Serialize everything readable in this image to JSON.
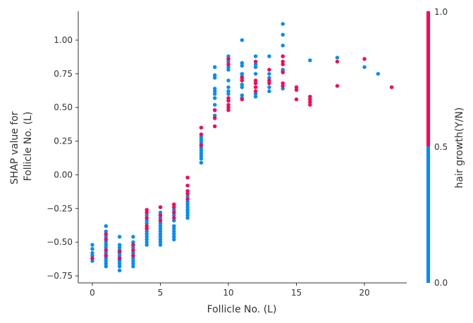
{
  "chart_data": {
    "type": "scatter",
    "title": "",
    "xlabel": "Follicle No. (L)",
    "ylabel_lines": [
      "SHAP value for",
      "Follicle No. (L)"
    ],
    "xlim": [
      -1,
      23
    ],
    "ylim": [
      -0.8,
      1.21
    ],
    "x_ticks": [
      0,
      5,
      10,
      15,
      20
    ],
    "x_tick_labels": [
      "0",
      "5",
      "10",
      "15",
      "20"
    ],
    "y_ticks": [
      -0.75,
      -0.5,
      -0.25,
      0.0,
      0.25,
      0.5,
      0.75,
      1.0
    ],
    "y_tick_labels": [
      "−0.75",
      "−0.50",
      "−0.25",
      "0.00",
      "0.25",
      "0.50",
      "0.75",
      "1.00"
    ],
    "grid": false,
    "colorbar": {
      "label": "hair growth(Y/N)",
      "tick_labels": [
        "0.0",
        "0.5",
        "1.0"
      ],
      "low_color": "#008bfb",
      "high_color": "#ff0052"
    },
    "series": [
      {
        "color": "#008bfb",
        "points": [
          [
            0,
            -0.52
          ],
          [
            0,
            -0.55
          ],
          [
            0,
            -0.58
          ],
          [
            0,
            -0.6
          ],
          [
            0,
            -0.62
          ],
          [
            0,
            -0.64
          ],
          [
            1,
            -0.38
          ],
          [
            1,
            -0.42
          ],
          [
            1,
            -0.46
          ],
          [
            1,
            -0.5
          ],
          [
            1,
            -0.52
          ],
          [
            1,
            -0.54
          ],
          [
            1,
            -0.58
          ],
          [
            1,
            -0.6
          ],
          [
            1,
            -0.62
          ],
          [
            1,
            -0.64
          ],
          [
            1,
            -0.66
          ],
          [
            1,
            -0.68
          ],
          [
            2,
            -0.46
          ],
          [
            2,
            -0.52
          ],
          [
            2,
            -0.54
          ],
          [
            2,
            -0.56
          ],
          [
            2,
            -0.58
          ],
          [
            2,
            -0.6
          ],
          [
            2,
            -0.62
          ],
          [
            2,
            -0.63
          ],
          [
            2,
            -0.64
          ],
          [
            2,
            -0.66
          ],
          [
            2,
            -0.68
          ],
          [
            2,
            -0.71
          ],
          [
            3,
            -0.46
          ],
          [
            3,
            -0.5
          ],
          [
            3,
            -0.52
          ],
          [
            3,
            -0.54
          ],
          [
            3,
            -0.56
          ],
          [
            3,
            -0.58
          ],
          [
            3,
            -0.6
          ],
          [
            3,
            -0.62
          ],
          [
            3,
            -0.64
          ],
          [
            3,
            -0.66
          ],
          [
            3,
            -0.68
          ],
          [
            4,
            -0.3
          ],
          [
            4,
            -0.34
          ],
          [
            4,
            -0.36
          ],
          [
            4,
            -0.4
          ],
          [
            4,
            -0.42
          ],
          [
            4,
            -0.44
          ],
          [
            4,
            -0.46
          ],
          [
            4,
            -0.48
          ],
          [
            4,
            -0.5
          ],
          [
            4,
            -0.52
          ],
          [
            5,
            -0.24
          ],
          [
            5,
            -0.28
          ],
          [
            5,
            -0.32
          ],
          [
            5,
            -0.36
          ],
          [
            5,
            -0.38
          ],
          [
            5,
            -0.4
          ],
          [
            5,
            -0.42
          ],
          [
            5,
            -0.44
          ],
          [
            5,
            -0.46
          ],
          [
            5,
            -0.48
          ],
          [
            5,
            -0.5
          ],
          [
            5,
            -0.52
          ],
          [
            6,
            -0.22
          ],
          [
            6,
            -0.26
          ],
          [
            6,
            -0.3
          ],
          [
            6,
            -0.34
          ],
          [
            6,
            -0.38
          ],
          [
            6,
            -0.4
          ],
          [
            6,
            -0.42
          ],
          [
            6,
            -0.44
          ],
          [
            6,
            -0.46
          ],
          [
            6,
            -0.48
          ],
          [
            7,
            -0.16
          ],
          [
            7,
            -0.2
          ],
          [
            7,
            -0.22
          ],
          [
            7,
            -0.24
          ],
          [
            7,
            -0.26
          ],
          [
            7,
            -0.28
          ],
          [
            7,
            -0.3
          ],
          [
            7,
            -0.32
          ],
          [
            8,
            0.28
          ],
          [
            8,
            0.26
          ],
          [
            8,
            0.24
          ],
          [
            8,
            0.22
          ],
          [
            8,
            0.2
          ],
          [
            8,
            0.18
          ],
          [
            8,
            0.16
          ],
          [
            8,
            0.14
          ],
          [
            8,
            0.12
          ],
          [
            8,
            0.09
          ],
          [
            9,
            0.8
          ],
          [
            9,
            0.74
          ],
          [
            9,
            0.72
          ],
          [
            9,
            0.64
          ],
          [
            9,
            0.62
          ],
          [
            9,
            0.6
          ],
          [
            9,
            0.57
          ],
          [
            9,
            0.52
          ],
          [
            9,
            0.48
          ],
          [
            9,
            0.44
          ],
          [
            10,
            0.88
          ],
          [
            10,
            0.86
          ],
          [
            10,
            0.84
          ],
          [
            10,
            0.8
          ],
          [
            10,
            0.78
          ],
          [
            10,
            0.7
          ],
          [
            10,
            0.65
          ],
          [
            10,
            0.62
          ],
          [
            10,
            0.6
          ],
          [
            11,
            1.0
          ],
          [
            11,
            0.83
          ],
          [
            11,
            0.81
          ],
          [
            11,
            0.75
          ],
          [
            11,
            0.73
          ],
          [
            11,
            0.72
          ],
          [
            11,
            0.67
          ],
          [
            11,
            0.65
          ],
          [
            11,
            0.59
          ],
          [
            11,
            0.57
          ],
          [
            12,
            0.88
          ],
          [
            12,
            0.82
          ],
          [
            12,
            0.8
          ],
          [
            12,
            0.75
          ],
          [
            12,
            0.6
          ],
          [
            12,
            0.58
          ],
          [
            13,
            0.88
          ],
          [
            13,
            0.75
          ],
          [
            13,
            0.72
          ],
          [
            13,
            0.65
          ],
          [
            13,
            0.62
          ],
          [
            14,
            1.12
          ],
          [
            14,
            1.04
          ],
          [
            14,
            0.96
          ],
          [
            14,
            0.88
          ],
          [
            14,
            0.78
          ],
          [
            14,
            0.77
          ],
          [
            14,
            0.64
          ],
          [
            16,
            0.85
          ],
          [
            18,
            0.87
          ],
          [
            20,
            0.8
          ],
          [
            21,
            0.75
          ]
        ]
      },
      {
        "color": "#ff0052",
        "points": [
          [
            0,
            -0.62
          ],
          [
            1,
            -0.44
          ],
          [
            1,
            -0.48
          ],
          [
            1,
            -0.56
          ],
          [
            1,
            -0.6
          ],
          [
            2,
            -0.57
          ],
          [
            2,
            -0.62
          ],
          [
            3,
            -0.52
          ],
          [
            3,
            -0.56
          ],
          [
            3,
            -0.6
          ],
          [
            4,
            -0.26
          ],
          [
            4,
            -0.28
          ],
          [
            4,
            -0.32
          ],
          [
            4,
            -0.38
          ],
          [
            4,
            -0.4
          ],
          [
            5,
            -0.24
          ],
          [
            5,
            -0.3
          ],
          [
            5,
            -0.34
          ],
          [
            6,
            -0.22
          ],
          [
            6,
            -0.24
          ],
          [
            6,
            -0.28
          ],
          [
            6,
            -0.32
          ],
          [
            7,
            -0.02
          ],
          [
            7,
            -0.08
          ],
          [
            7,
            -0.12
          ],
          [
            7,
            -0.14
          ],
          [
            7,
            -0.18
          ],
          [
            8,
            0.35
          ],
          [
            8,
            0.3
          ],
          [
            8,
            0.22
          ],
          [
            9,
            0.36
          ],
          [
            9,
            0.42
          ],
          [
            9,
            0.48
          ],
          [
            10,
            0.86
          ],
          [
            10,
            0.82
          ],
          [
            10,
            0.57
          ],
          [
            10,
            0.55
          ],
          [
            10,
            0.52
          ],
          [
            10,
            0.5
          ],
          [
            10,
            0.48
          ],
          [
            11,
            0.72
          ],
          [
            11,
            0.7
          ],
          [
            11,
            0.56
          ],
          [
            12,
            0.84
          ],
          [
            12,
            0.7
          ],
          [
            12,
            0.68
          ],
          [
            12,
            0.65
          ],
          [
            12,
            0.62
          ],
          [
            13,
            0.78
          ],
          [
            13,
            0.7
          ],
          [
            13,
            0.68
          ],
          [
            14,
            0.88
          ],
          [
            14,
            0.84
          ],
          [
            14,
            0.82
          ],
          [
            14,
            0.76
          ],
          [
            14,
            0.68
          ],
          [
            14,
            0.66
          ],
          [
            15,
            0.65
          ],
          [
            15,
            0.63
          ],
          [
            15,
            0.56
          ],
          [
            16,
            0.58
          ],
          [
            16,
            0.56
          ],
          [
            16,
            0.54
          ],
          [
            16,
            0.52
          ],
          [
            18,
            0.84
          ],
          [
            18,
            0.66
          ],
          [
            20,
            0.86
          ],
          [
            22,
            0.65
          ]
        ]
      }
    ]
  }
}
